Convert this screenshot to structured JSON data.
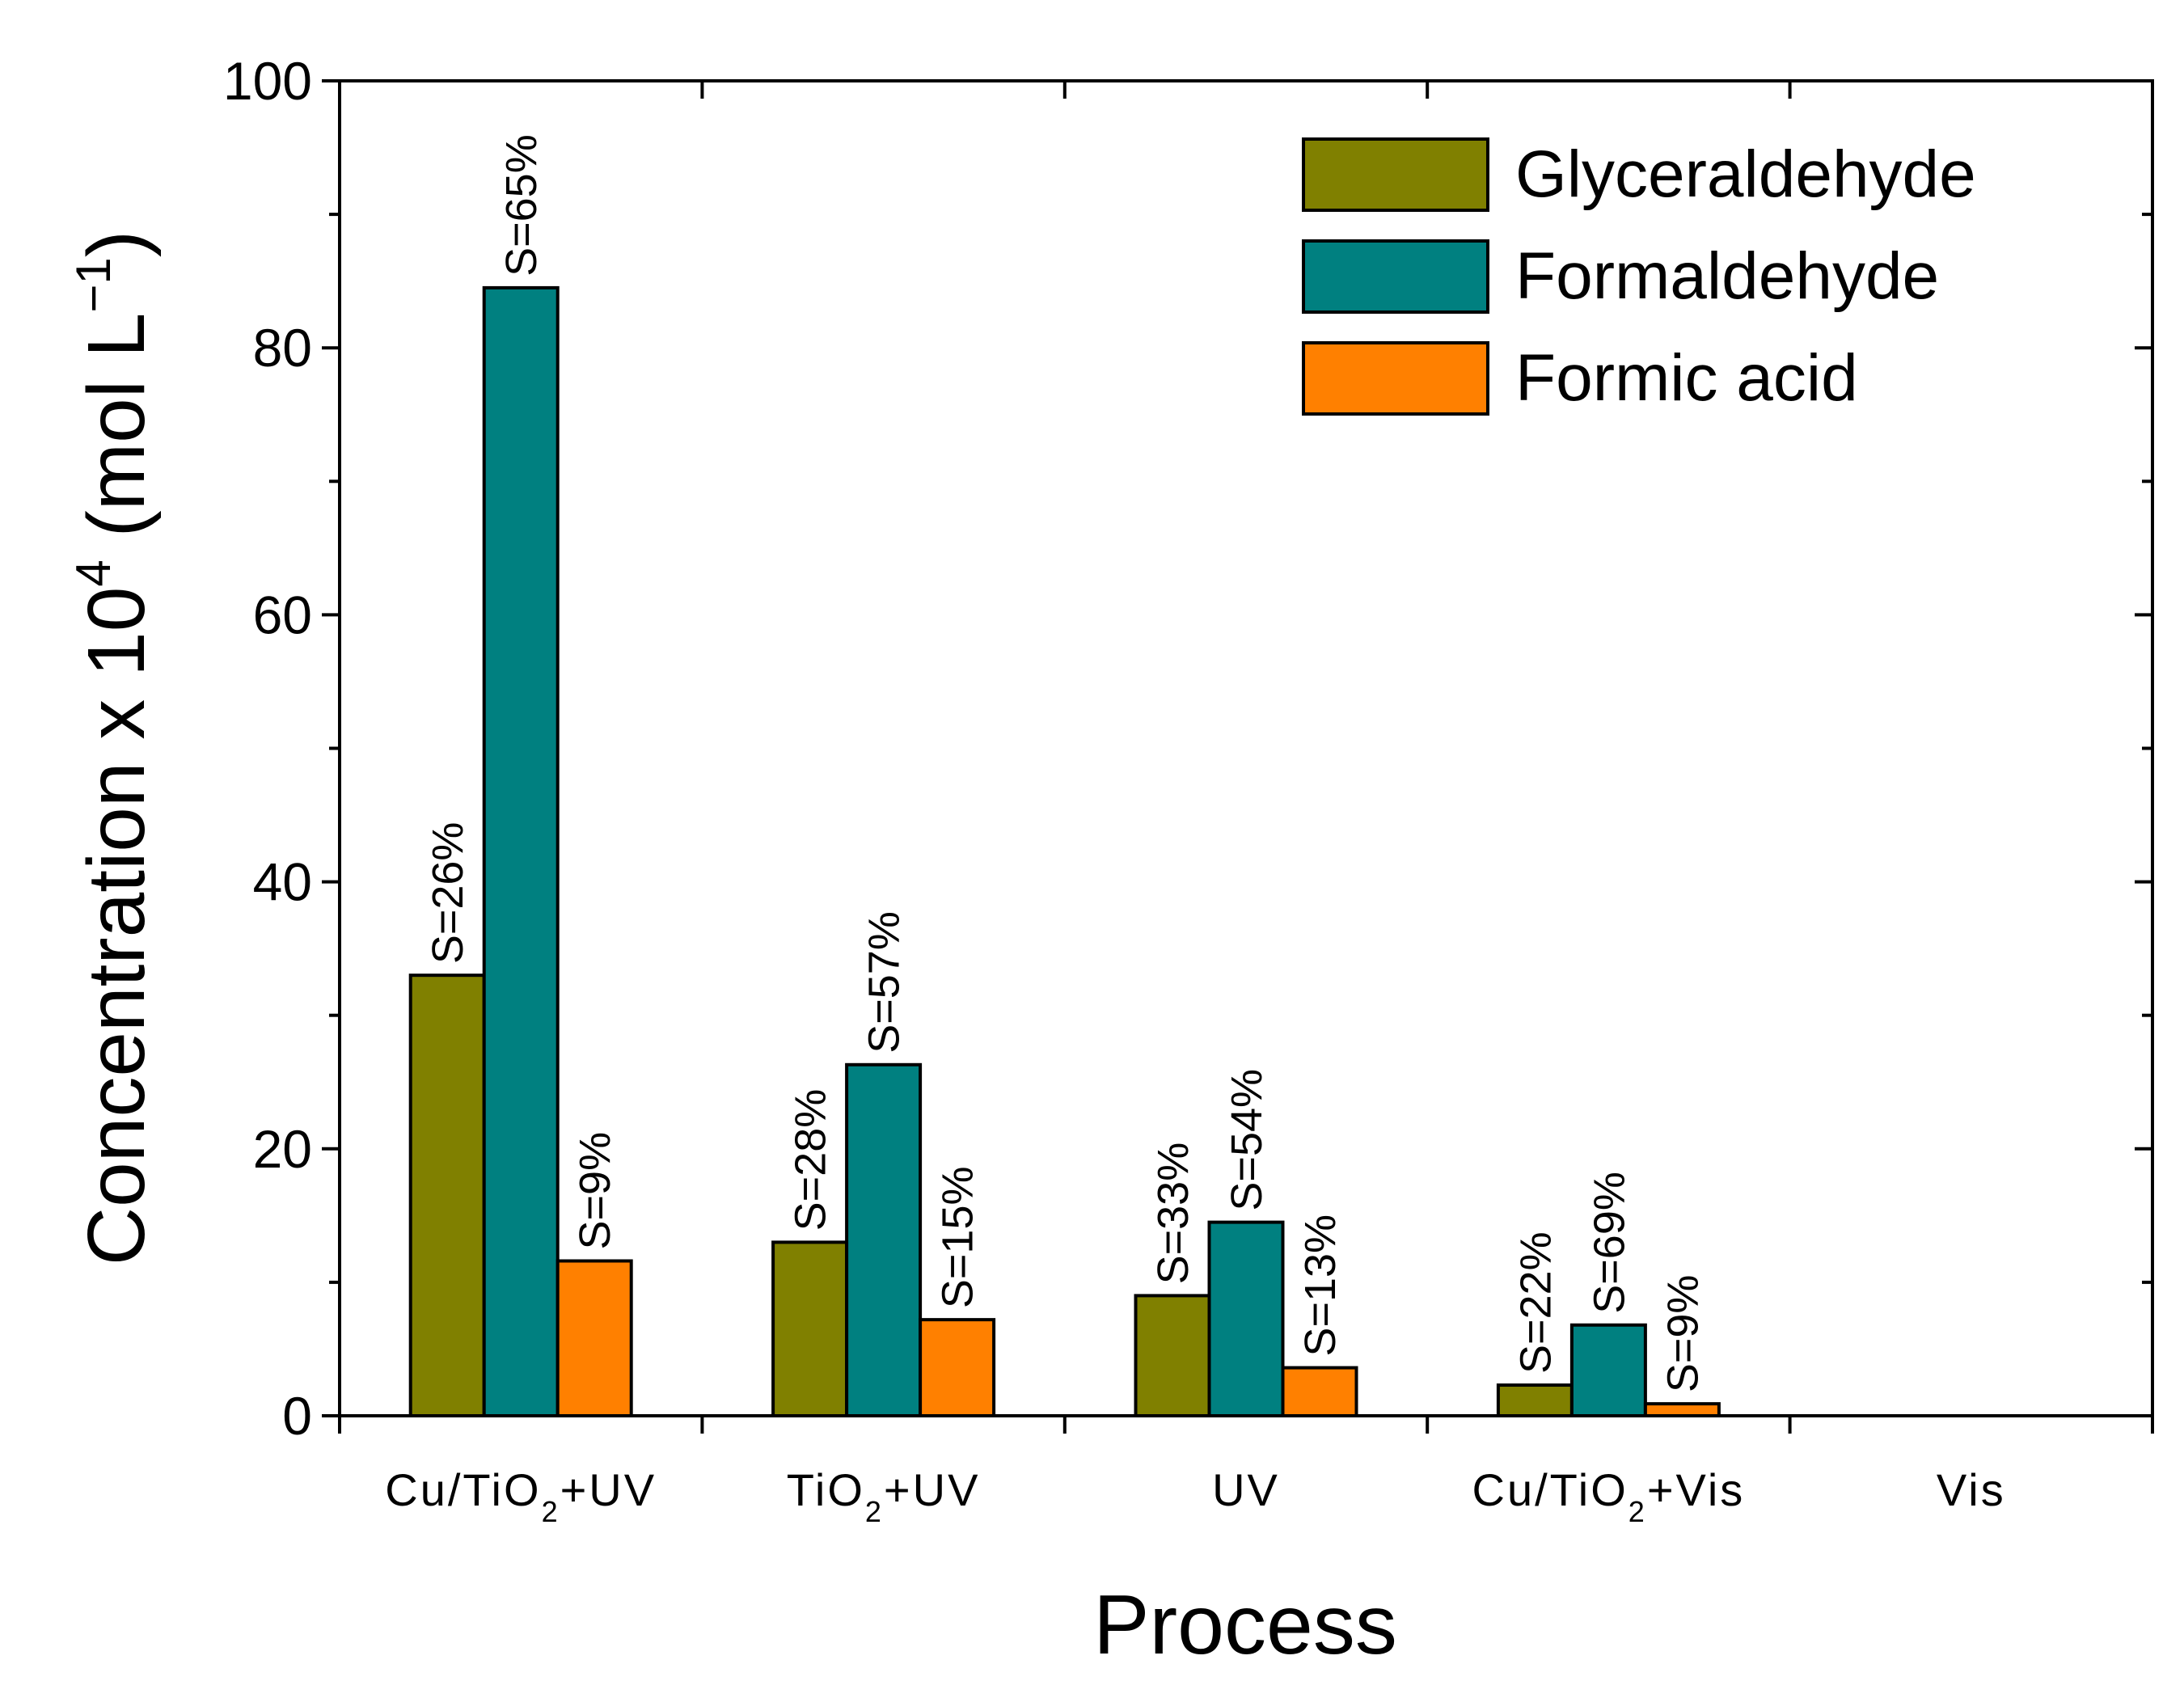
{
  "chart_data": {
    "type": "bar",
    "xlabel": "Process",
    "ylabel": {
      "main": "Concentration x 10",
      "sup": "4",
      "unit": "(mol L",
      "unit_sup": "−1",
      "close": ")"
    },
    "ylim": [
      0,
      100
    ],
    "yticks": [
      0,
      20,
      40,
      60,
      80,
      100
    ],
    "categories": [
      {
        "base": "Cu/TiO",
        "sub": "2",
        "rest": "+UV"
      },
      {
        "base": "TiO",
        "sub": "2",
        "rest": "+UV"
      },
      {
        "base": "UV",
        "sub": "",
        "rest": ""
      },
      {
        "base": "Cu/TiO",
        "sub": "2",
        "rest": "+Vis"
      },
      {
        "base": "Vis",
        "sub": "",
        "rest": ""
      }
    ],
    "series": [
      {
        "name": "Glyceraldehyde",
        "color": "#808000",
        "values": [
          33,
          13,
          9,
          2.3,
          0
        ],
        "labels": [
          "S=26%",
          "S=28%",
          "S=33%",
          "S=22%",
          ""
        ]
      },
      {
        "name": "Formaldehyde",
        "color": "#008080",
        "values": [
          84.5,
          26.3,
          14.5,
          6.8,
          0
        ],
        "labels": [
          "S=65%",
          "S=57%",
          "S=54%",
          "S=69%",
          ""
        ]
      },
      {
        "name": "Formic acid",
        "color": "#ff8000",
        "values": [
          11.6,
          7.2,
          3.6,
          0.9,
          0
        ],
        "labels": [
          "S=9%",
          "S=15%",
          "S=13%",
          "S=9%",
          ""
        ]
      }
    ],
    "legend": {
      "position": "top-right"
    }
  }
}
